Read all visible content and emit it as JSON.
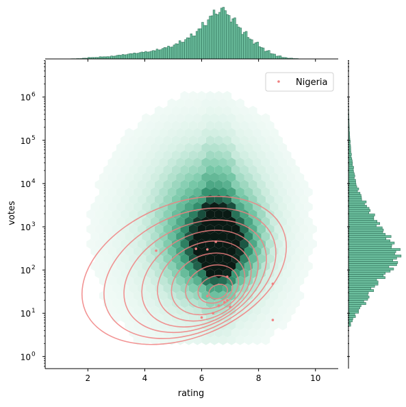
{
  "chart_data": {
    "type": "scatter",
    "subtype": "jointplot (hexbin + kde + marginal histograms)",
    "xlabel": "rating",
    "ylabel": "votes",
    "xlim": [
      0.5,
      10.8
    ],
    "ylim_log10": [
      -0.28,
      6.85
    ],
    "y_scale": "log",
    "x_ticks": [
      2,
      4,
      6,
      8,
      10
    ],
    "x_tick_labels": [
      "2",
      "4",
      "6",
      "8",
      "10"
    ],
    "y_ticks_exp": [
      0,
      1,
      2,
      3,
      4,
      5,
      6
    ],
    "y_tick_labels": [
      {
        "base": "10",
        "exp": "0"
      },
      {
        "base": "10",
        "exp": "1"
      },
      {
        "base": "10",
        "exp": "2"
      },
      {
        "base": "10",
        "exp": "3"
      },
      {
        "base": "10",
        "exp": "4"
      },
      {
        "base": "10",
        "exp": "5"
      },
      {
        "base": "10",
        "exp": "6"
      }
    ],
    "legend": {
      "position": "upper-right",
      "entries": [
        {
          "label": "Nigeria",
          "color": "#f08080"
        }
      ]
    },
    "colors": {
      "hex_dark": "#0d2b22",
      "hex_mid": "#3fb08a",
      "hex_light": "#e8f6f0",
      "kde": "#f08080",
      "hist_fill": "#6cbf9e",
      "hist_edge": "#2f6f58"
    },
    "nigeria_points": [
      {
        "x": 4.4,
        "y": 280
      },
      {
        "x": 5.8,
        "y": 310
      },
      {
        "x": 6.0,
        "y": 8
      },
      {
        "x": 6.2,
        "y": 25
      },
      {
        "x": 6.4,
        "y": 10
      },
      {
        "x": 6.6,
        "y": 15
      },
      {
        "x": 6.8,
        "y": 18
      },
      {
        "x": 6.9,
        "y": 20
      },
      {
        "x": 7.0,
        "y": 14
      },
      {
        "x": 6.9,
        "y": 70
      },
      {
        "x": 8.5,
        "y": 48
      },
      {
        "x": 8.5,
        "y": 7
      },
      {
        "x": 6.2,
        "y": 300
      },
      {
        "x": 6.5,
        "y": 450
      }
    ],
    "kde_center": {
      "x": 6.7,
      "y": 28
    },
    "x_marginal": {
      "bins_x": [
        1.0,
        1.2,
        1.4,
        1.6,
        1.8,
        2.0,
        2.2,
        2.4,
        2.6,
        2.8,
        3.0,
        3.2,
        3.4,
        3.6,
        3.8,
        4.0,
        4.2,
        4.4,
        4.6,
        4.8,
        5.0,
        5.2,
        5.4,
        5.6,
        5.8,
        6.0,
        6.2,
        6.4,
        6.6,
        6.8,
        7.0,
        7.2,
        7.4,
        7.6,
        7.8,
        8.0,
        8.2,
        8.4,
        8.6,
        8.8,
        9.0,
        9.2,
        9.4,
        9.6,
        9.8
      ],
      "counts": [
        0,
        0,
        0.3,
        0.5,
        1,
        2,
        2,
        3,
        3,
        4,
        5,
        6,
        7,
        8,
        9,
        10,
        11,
        13,
        15,
        17,
        20,
        24,
        28,
        33,
        40,
        48,
        57,
        64,
        68,
        63,
        54,
        45,
        36,
        28,
        22,
        16,
        11,
        7,
        4,
        2,
        1,
        0.5,
        0,
        0,
        0
      ]
    },
    "y_marginal": {
      "bins_exp": [
        0.7,
        0.8,
        0.9,
        1.0,
        1.1,
        1.2,
        1.3,
        1.4,
        1.5,
        1.6,
        1.7,
        1.8,
        1.9,
        2.0,
        2.1,
        2.2,
        2.3,
        2.4,
        2.5,
        2.6,
        2.7,
        2.8,
        2.9,
        3.0,
        3.1,
        3.2,
        3.3,
        3.4,
        3.5,
        3.6,
        3.7,
        3.8,
        3.9,
        4.0,
        4.1,
        4.2,
        4.3,
        4.4,
        4.5,
        4.6,
        4.7,
        4.8,
        4.9,
        5.0,
        5.1,
        5.2,
        5.3,
        5.4,
        5.5,
        5.6,
        5.7,
        5.8,
        5.9
      ],
      "counts": [
        3,
        6,
        10,
        14,
        18,
        24,
        28,
        30,
        34,
        40,
        44,
        50,
        58,
        64,
        68,
        70,
        72,
        70,
        66,
        62,
        58,
        54,
        48,
        44,
        40,
        36,
        32,
        28,
        24,
        20,
        17,
        14,
        12,
        10,
        9,
        8,
        7,
        6,
        5,
        4,
        3.5,
        3,
        2.5,
        2,
        1.5,
        1.2,
        1,
        0.8,
        0.6,
        0.4,
        0.3,
        0.2,
        0.1
      ]
    }
  }
}
